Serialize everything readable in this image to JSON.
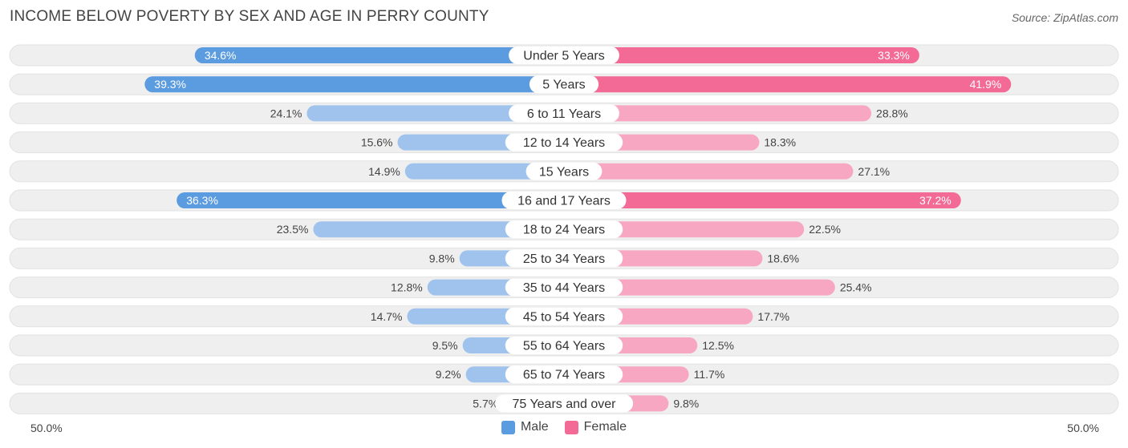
{
  "title": "INCOME BELOW POVERTY BY SEX AND AGE IN PERRY COUNTY",
  "source": "Source: ZipAtlas.com",
  "legend": {
    "male": "Male",
    "female": "Female"
  },
  "axis": {
    "left_label": "50.0%",
    "right_label": "50.0%"
  },
  "colors": {
    "male_strong": "#5b9bdf",
    "male_light": "#9fc3ec",
    "female_strong": "#f26a95",
    "female_light": "#f7a7c1",
    "row_bg": "#efefef"
  },
  "chart_data": {
    "type": "bar",
    "orientation": "horizontal-diverging",
    "title": "INCOME BELOW POVERTY BY SEX AND AGE IN PERRY COUNTY",
    "categories": [
      "Under 5 Years",
      "5 Years",
      "6 to 11 Years",
      "12 to 14 Years",
      "15 Years",
      "16 and 17 Years",
      "18 to 24 Years",
      "25 to 34 Years",
      "35 to 44 Years",
      "45 to 54 Years",
      "55 to 64 Years",
      "65 to 74 Years",
      "75 Years and over"
    ],
    "series": [
      {
        "name": "Male",
        "values": [
          34.6,
          39.3,
          24.1,
          15.6,
          14.9,
          36.3,
          23.5,
          9.8,
          12.8,
          14.7,
          9.5,
          9.2,
          5.7
        ]
      },
      {
        "name": "Female",
        "values": [
          33.3,
          41.9,
          28.8,
          18.3,
          27.1,
          37.2,
          22.5,
          18.6,
          25.4,
          17.7,
          12.5,
          11.7,
          9.8
        ]
      }
    ],
    "value_labels": {
      "male": [
        "34.6%",
        "39.3%",
        "24.1%",
        "15.6%",
        "14.9%",
        "36.3%",
        "23.5%",
        "9.8%",
        "12.8%",
        "14.7%",
        "9.5%",
        "9.2%",
        "5.7%"
      ],
      "female": [
        "33.3%",
        "41.9%",
        "28.8%",
        "18.3%",
        "27.1%",
        "37.2%",
        "22.5%",
        "18.6%",
        "25.4%",
        "17.7%",
        "12.5%",
        "11.7%",
        "9.8%"
      ]
    },
    "xlim": [
      -50,
      50
    ],
    "legend_position": "bottom-center"
  }
}
